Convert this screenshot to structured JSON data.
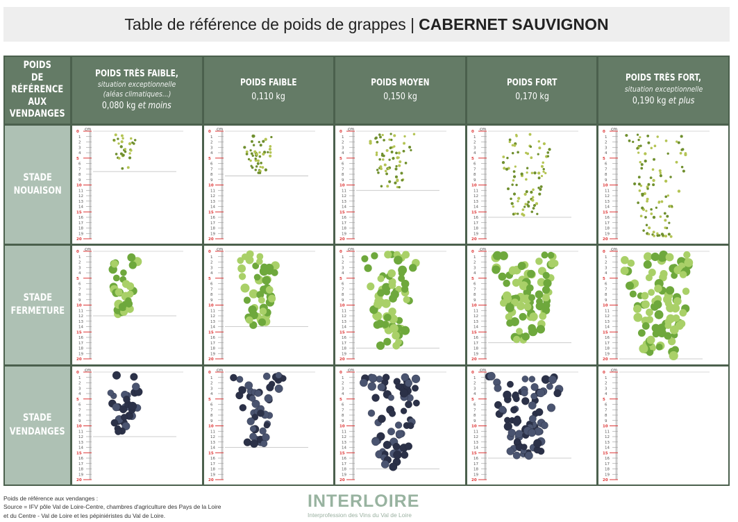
{
  "title": {
    "prefix": "Table de référence de poids de grappes |",
    "variety": "CABERNET SAUVIGNON"
  },
  "header": {
    "corner": "POIDS\nDE RÉFÉRENCE\nAUX\nVENDANGES",
    "columns": [
      {
        "label": "POIDS TRÈS FAIBLE,",
        "sub": "situation exceptionnelle",
        "sub2": "(aléas climatiques...)",
        "weight": "0,080 kg",
        "weight_suffix": "et moins"
      },
      {
        "label": "POIDS FAIBLE",
        "sub": "",
        "sub2": "",
        "weight": "0,110 kg",
        "weight_suffix": ""
      },
      {
        "label": "POIDS MOYEN",
        "sub": "",
        "sub2": "",
        "weight": "0,150 kg",
        "weight_suffix": ""
      },
      {
        "label": "POIDS FORT",
        "sub": "",
        "sub2": "",
        "weight": "0,170 kg",
        "weight_suffix": ""
      },
      {
        "label": "POIDS TRÈS FORT,",
        "sub": "situation exceptionnelle",
        "sub2": "",
        "weight": "0,190 kg",
        "weight_suffix": "et plus"
      }
    ]
  },
  "ruler": {
    "unit": "cm",
    "max": 20
  },
  "rows": [
    {
      "label": "STADE\nNOUAISON",
      "color": "#7a9a3a",
      "lengths_cm": [
        7.5,
        8.3,
        11,
        16,
        20
      ],
      "length_marked": [
        true,
        true,
        true,
        true,
        false
      ]
    },
    {
      "label": "STADE\nFERMETURE",
      "color": "#7fb24a",
      "lengths_cm": [
        12,
        14,
        18,
        17,
        20
      ],
      "length_marked": [
        true,
        true,
        true,
        true,
        true
      ]
    },
    {
      "label": "STADE\nVENDANGES",
      "color": "#2f3650",
      "lengths_cm": [
        12,
        14,
        18,
        16,
        0
      ],
      "length_marked": [
        true,
        true,
        true,
        true,
        false
      ]
    }
  ],
  "footer": {
    "line1": "Poids de référence aux vendanges :",
    "line2": "Source = IFV pôle Val de Loire-Centre, chambres d'agriculture des Pays de la Loire",
    "line3": "et du Centre - Val de Loire et les pépiniéristes du Val de Loire."
  },
  "logo": {
    "name": "INTERLOIRE",
    "tagline": "Interprofession des Vins du Val de Loire"
  }
}
